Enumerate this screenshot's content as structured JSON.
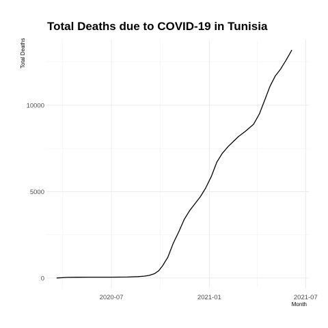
{
  "chart_data": {
    "type": "line",
    "title": "Total Deaths due to COVID-19 in Tunisia",
    "xlabel": "Month",
    "ylabel": "Total Deaths",
    "x_ticks": [
      "2020-07",
      "2021-01",
      "2021-07"
    ],
    "y_ticks": [
      "0",
      "5000",
      "10000"
    ],
    "x_tick_values": [
      "2020-07-01",
      "2021-01-01",
      "2021-07-01"
    ],
    "y_tick_values": [
      0,
      5000,
      10000
    ],
    "xlim": [
      "2020-03-01",
      "2021-07-07"
    ],
    "ylim": [
      -600,
      13800
    ],
    "grid": true,
    "series": [
      {
        "color": "#000000",
        "points": [
          [
            "2020-03-20",
            1
          ],
          [
            "2020-04-10",
            35
          ],
          [
            "2020-05-01",
            45
          ],
          [
            "2020-06-01",
            50
          ],
          [
            "2020-07-01",
            50
          ],
          [
            "2020-08-01",
            55
          ],
          [
            "2020-08-20",
            80
          ],
          [
            "2020-09-01",
            110
          ],
          [
            "2020-09-10",
            150
          ],
          [
            "2020-09-20",
            250
          ],
          [
            "2020-09-28",
            420
          ],
          [
            "2020-10-05",
            700
          ],
          [
            "2020-10-15",
            1200
          ],
          [
            "2020-10-25",
            2000
          ],
          [
            "2020-11-05",
            2700
          ],
          [
            "2020-11-15",
            3400
          ],
          [
            "2020-11-25",
            3900
          ],
          [
            "2020-12-05",
            4300
          ],
          [
            "2020-12-15",
            4700
          ],
          [
            "2020-12-25",
            5200
          ],
          [
            "2021-01-05",
            5900
          ],
          [
            "2021-01-15",
            6700
          ],
          [
            "2021-01-25",
            7200
          ],
          [
            "2021-02-05",
            7600
          ],
          [
            "2021-02-15",
            7900
          ],
          [
            "2021-02-25",
            8200
          ],
          [
            "2021-03-10",
            8500
          ],
          [
            "2021-03-25",
            8900
          ],
          [
            "2021-04-05",
            9500
          ],
          [
            "2021-04-15",
            10300
          ],
          [
            "2021-04-25",
            11100
          ],
          [
            "2021-05-05",
            11700
          ],
          [
            "2021-05-15",
            12100
          ],
          [
            "2021-05-25",
            12600
          ],
          [
            "2021-06-05",
            13200
          ]
        ]
      }
    ]
  }
}
